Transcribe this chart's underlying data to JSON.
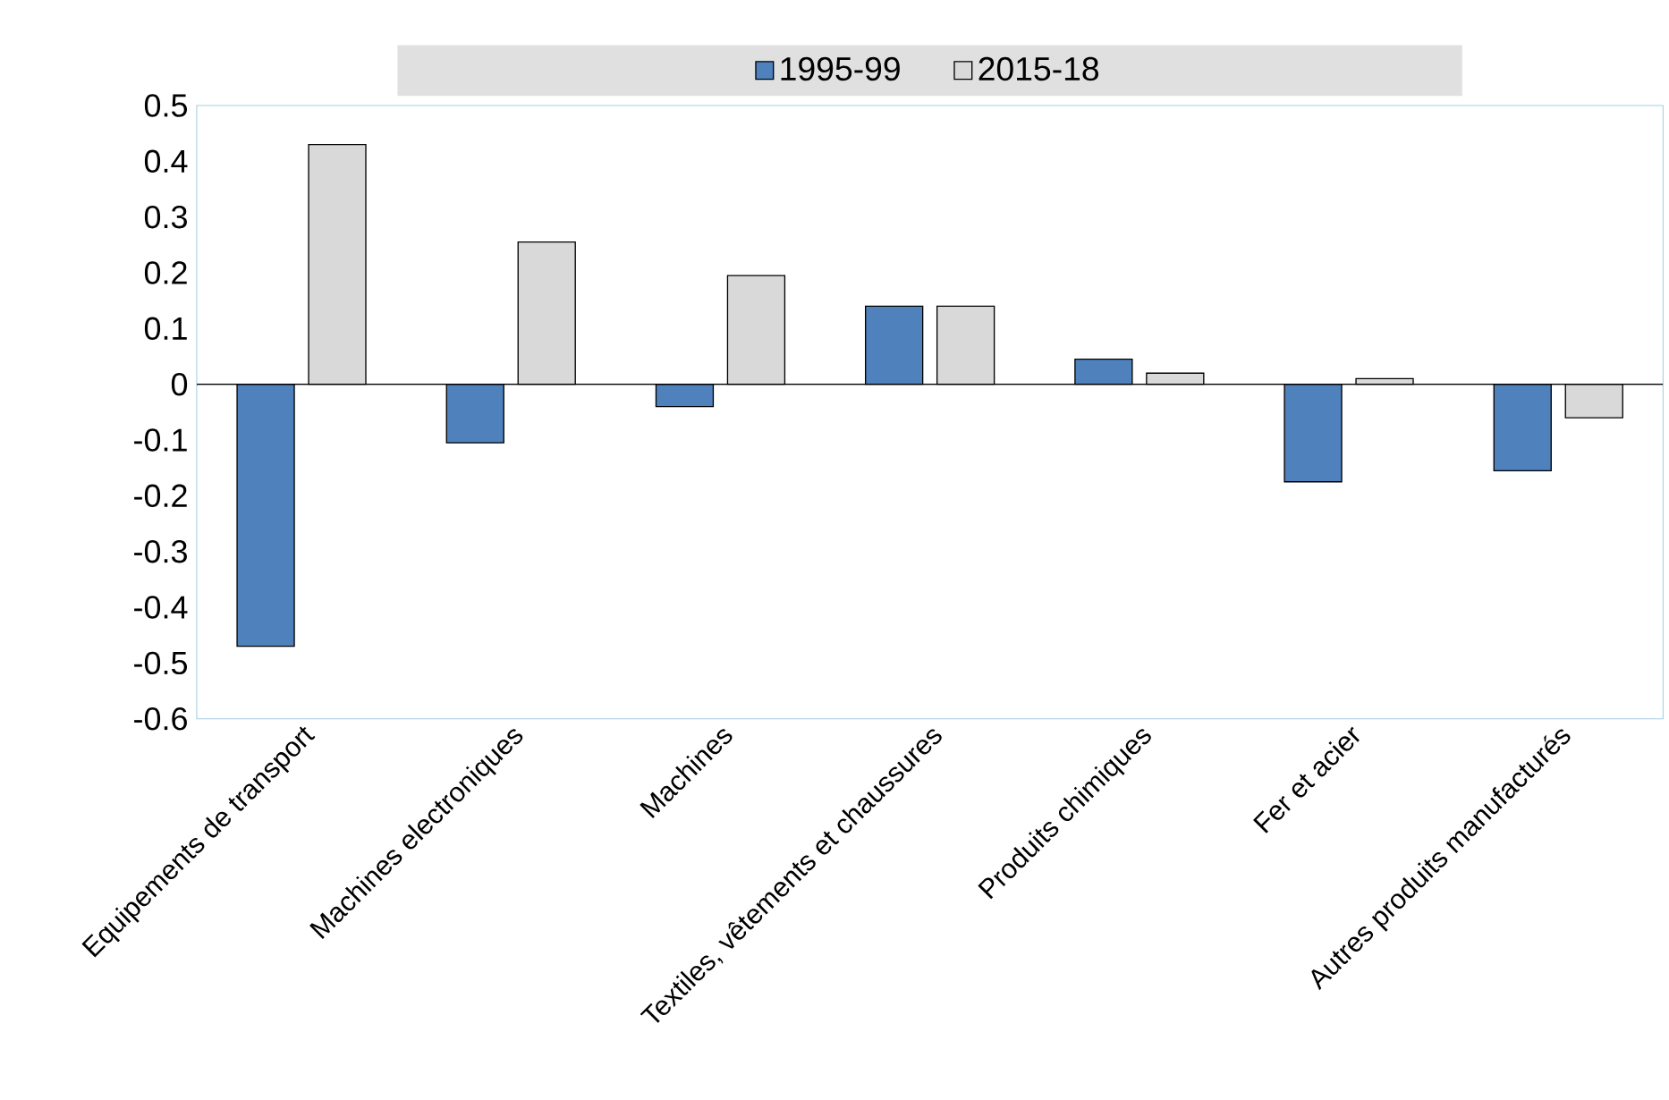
{
  "chart_data": {
    "type": "bar",
    "categories": [
      "Equipements de transport",
      "Machines electroniques",
      "Machines",
      "Textiles, vêtements et chaussures",
      "Produits chimiques",
      "Fer et acier",
      "Autres produits manufacturés"
    ],
    "series": [
      {
        "name": "1995-99",
        "color": "#4f81bd",
        "values": [
          -0.47,
          -0.105,
          -0.04,
          0.14,
          0.045,
          -0.175,
          -0.155
        ]
      },
      {
        "name": "2015-18",
        "color": "#d9d9d9",
        "values": [
          0.43,
          0.255,
          0.195,
          0.14,
          0.02,
          0.01,
          -0.06
        ]
      }
    ],
    "ylim": [
      -0.6,
      0.5
    ],
    "yticks": [
      -0.6,
      -0.5,
      -0.4,
      -0.3,
      -0.2,
      -0.1,
      0,
      0.1,
      0.2,
      0.3,
      0.4,
      0.5
    ],
    "legend": "top"
  }
}
